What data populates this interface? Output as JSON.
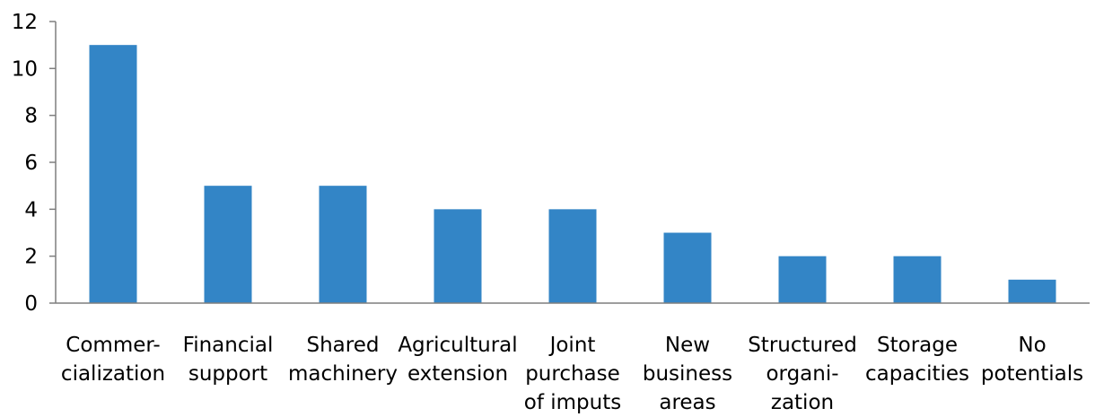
{
  "chart_data": {
    "type": "bar",
    "categories": [
      [
        "Commer-",
        "cialization"
      ],
      [
        "Financial",
        "support"
      ],
      [
        "Shared",
        "machinery"
      ],
      [
        "Agricultural",
        "extension"
      ],
      [
        "Joint",
        "purchase",
        "of imputs"
      ],
      [
        "New",
        "business",
        "areas"
      ],
      [
        "Structured",
        "organi-",
        "zation"
      ],
      [
        "Storage",
        "capacities"
      ],
      [
        "No",
        "potentials"
      ]
    ],
    "values": [
      11,
      5,
      5,
      4,
      4,
      3,
      2,
      2,
      1
    ],
    "yticks": [
      "0",
      "2",
      "4",
      "6",
      "8",
      "10",
      "12"
    ],
    "ylim": [
      0,
      12
    ],
    "bar_color": "#3385C6",
    "axis_color": "#7f7f7f",
    "grid": false,
    "legend": false
  }
}
